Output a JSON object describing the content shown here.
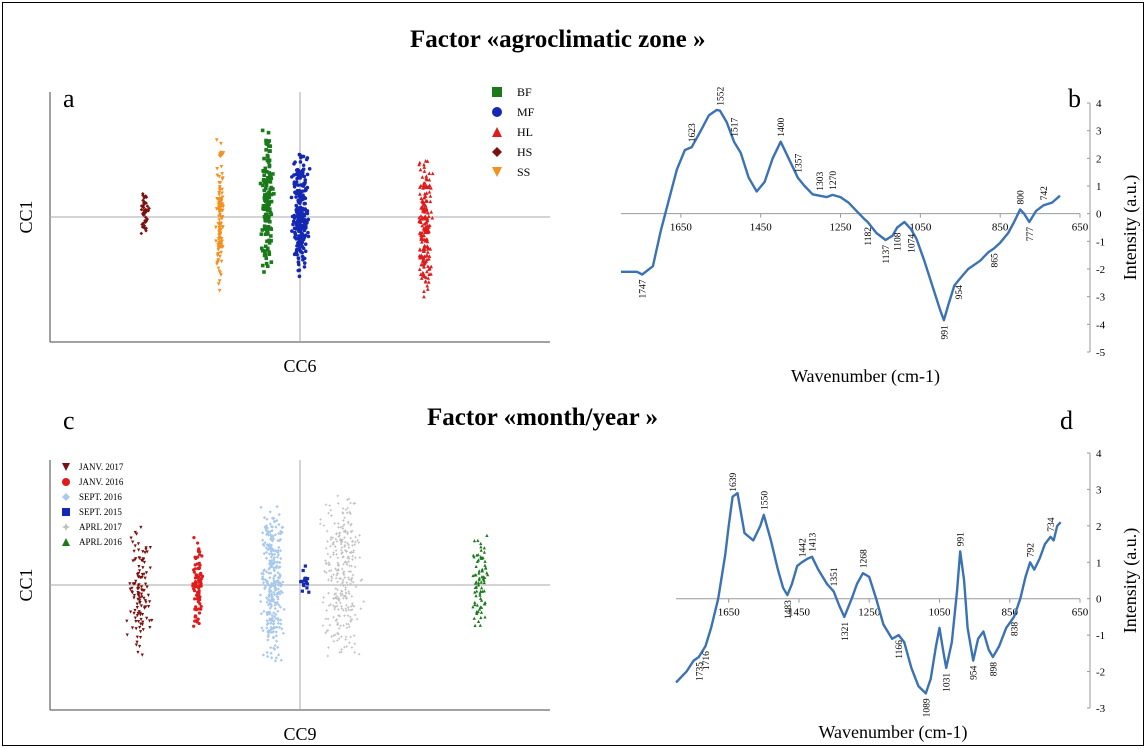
{
  "titles": {
    "top": "Factor «agroclimatic zone »",
    "bottom": "Factor «month/year »"
  },
  "chart_data": [
    {
      "panel": "a",
      "type": "scatter",
      "xlabel": "CC6",
      "ylabel": "CC1",
      "xlim": [
        -1,
        1
      ],
      "ylim": [
        -1,
        1
      ],
      "grid": false,
      "legend_position": "top-right",
      "series": [
        {
          "name": "BF",
          "marker": "square",
          "color": "#1a7a1a",
          "x_center": -0.13,
          "x_spread": 0.03,
          "y_range": [
            -0.5,
            0.72
          ],
          "count": 140
        },
        {
          "name": "MF",
          "marker": "circle",
          "color": "#1428b4",
          "x_center": 0.0,
          "x_spread": 0.045,
          "y_range": [
            -0.5,
            0.56
          ],
          "count": 260
        },
        {
          "name": "HL",
          "marker": "triangle-up",
          "color": "#e01b1b",
          "x_center": 0.5,
          "x_spread": 0.035,
          "y_range": [
            -0.68,
            0.5
          ],
          "count": 200
        },
        {
          "name": "HS",
          "marker": "diamond",
          "color": "#7a1010",
          "x_center": -0.62,
          "x_spread": 0.018,
          "y_range": [
            -0.16,
            0.22
          ],
          "count": 45
        },
        {
          "name": "SS",
          "marker": "triangle-down",
          "color": "#f5901e",
          "x_center": -0.32,
          "x_spread": 0.02,
          "y_range": [
            -0.66,
            0.64
          ],
          "count": 130
        }
      ]
    },
    {
      "panel": "b",
      "type": "line",
      "xlabel": "Wavenumber (cm-1)",
      "ylabel": "Intensity (a.u.)",
      "xlim": [
        1800,
        650
      ],
      "ylim": [
        -5,
        4
      ],
      "x_ticks": [
        1650,
        1450,
        1250,
        1050,
        850,
        650
      ],
      "y_ticks": [
        4,
        3,
        2,
        1,
        0,
        -1,
        -2,
        -3,
        -4,
        -5
      ],
      "line_color": "#3a72b5",
      "x": [
        1800,
        1760,
        1747,
        1720,
        1700,
        1680,
        1660,
        1640,
        1623,
        1600,
        1580,
        1560,
        1552,
        1535,
        1517,
        1500,
        1480,
        1460,
        1440,
        1420,
        1400,
        1380,
        1357,
        1340,
        1320,
        1303,
        1285,
        1270,
        1250,
        1230,
        1210,
        1190,
        1182,
        1160,
        1137,
        1120,
        1108,
        1090,
        1074,
        1060,
        1040,
        1020,
        1000,
        991,
        980,
        965,
        954,
        930,
        900,
        880,
        865,
        850,
        830,
        815,
        800,
        790,
        777,
        760,
        742,
        720,
        700
      ],
      "y": [
        -2.1,
        -2.1,
        -2.2,
        -1.9,
        -0.6,
        0.5,
        1.6,
        2.3,
        2.4,
        3.0,
        3.55,
        3.75,
        3.72,
        3.3,
        2.6,
        2.2,
        1.3,
        0.8,
        1.15,
        2.0,
        2.6,
        2.0,
        1.3,
        1.0,
        0.7,
        0.65,
        0.6,
        0.68,
        0.6,
        0.4,
        0.1,
        -0.2,
        -0.3,
        -0.7,
        -0.95,
        -0.8,
        -0.5,
        -0.3,
        -0.55,
        -0.9,
        -1.7,
        -2.6,
        -3.5,
        -3.85,
        -3.3,
        -2.6,
        -2.4,
        -2.0,
        -1.7,
        -1.4,
        -1.25,
        -1.05,
        -0.7,
        -0.3,
        0.15,
        0.0,
        -0.3,
        0.1,
        0.3,
        0.4,
        0.65
      ],
      "peak_labels": [
        {
          "x": 1747,
          "y": -2.2,
          "text": "1747",
          "pos": "below"
        },
        {
          "x": 1623,
          "y": 2.4,
          "text": "1623",
          "pos": "above"
        },
        {
          "x": 1552,
          "y": 3.72,
          "text": "1552",
          "pos": "above"
        },
        {
          "x": 1517,
          "y": 2.6,
          "text": "1517",
          "pos": "above"
        },
        {
          "x": 1400,
          "y": 2.6,
          "text": "1400",
          "pos": "above"
        },
        {
          "x": 1357,
          "y": 1.3,
          "text": "1357",
          "pos": "above"
        },
        {
          "x": 1303,
          "y": 0.65,
          "text": "1303",
          "pos": "above"
        },
        {
          "x": 1270,
          "y": 0.68,
          "text": "1270",
          "pos": "above"
        },
        {
          "x": 1182,
          "y": -0.3,
          "text": "1182",
          "pos": "below"
        },
        {
          "x": 1137,
          "y": -0.95,
          "text": "1137",
          "pos": "below"
        },
        {
          "x": 1108,
          "y": -0.5,
          "text": "1108",
          "pos": "below"
        },
        {
          "x": 1074,
          "y": -0.55,
          "text": "1074",
          "pos": "below"
        },
        {
          "x": 991,
          "y": -3.85,
          "text": "991",
          "pos": "below"
        },
        {
          "x": 954,
          "y": -2.4,
          "text": "954",
          "pos": "below"
        },
        {
          "x": 865,
          "y": -1.25,
          "text": "865",
          "pos": "below"
        },
        {
          "x": 800,
          "y": 0.15,
          "text": "800",
          "pos": "above"
        },
        {
          "x": 777,
          "y": -0.3,
          "text": "777",
          "pos": "below"
        },
        {
          "x": 742,
          "y": 0.3,
          "text": "742",
          "pos": "above"
        }
      ]
    },
    {
      "panel": "c",
      "type": "scatter",
      "xlabel": "CC9",
      "ylabel": "CC1",
      "xlim": [
        -1,
        1
      ],
      "ylim": [
        -1,
        1
      ],
      "grid": false,
      "legend_position": "top-left",
      "series": [
        {
          "name": "JANV. 2017",
          "marker": "triangle-down",
          "color": "#7a1010",
          "x_center": -0.64,
          "x_spread": 0.06,
          "y_range": [
            -0.6,
            0.5
          ],
          "count": 120
        },
        {
          "name": "JANV. 2016",
          "marker": "circle",
          "color": "#e01b1b",
          "x_center": -0.41,
          "x_spread": 0.025,
          "y_range": [
            -0.4,
            0.4
          ],
          "count": 90
        },
        {
          "name": "SEPT. 2016",
          "marker": "diamond",
          "color": "#a8c8ec",
          "x_center": -0.11,
          "x_spread": 0.06,
          "y_range": [
            -0.7,
            0.7
          ],
          "count": 300
        },
        {
          "name": "SEPT. 2015",
          "marker": "square",
          "color": "#1428b4",
          "x_center": 0.02,
          "x_spread": 0.03,
          "y_range": [
            -0.12,
            0.2
          ],
          "count": 16
        },
        {
          "name": "APRL 2017",
          "marker": "star",
          "color": "#c0c0c0",
          "x_center": 0.17,
          "x_spread": 0.1,
          "y_range": [
            -0.62,
            0.78
          ],
          "count": 300
        },
        {
          "name": "APRL 2016",
          "marker": "triangle-up",
          "color": "#1a7a1a",
          "x_center": 0.72,
          "x_spread": 0.045,
          "y_range": [
            -0.38,
            0.48
          ],
          "count": 80
        }
      ]
    },
    {
      "panel": "d",
      "type": "line",
      "xlabel": "Wavenumber (cm-1)",
      "ylabel": "Intensity (a.u.)",
      "xlim": [
        1800,
        650
      ],
      "ylim": [
        -3,
        4
      ],
      "x_ticks": [
        1650,
        1450,
        1250,
        1050,
        850,
        650
      ],
      "y_ticks": [
        4,
        3,
        2,
        1,
        0,
        -1,
        -2,
        -3
      ],
      "line_color": "#3a72b5",
      "x": [
        1800,
        1770,
        1750,
        1735,
        1716,
        1700,
        1680,
        1660,
        1650,
        1639,
        1625,
        1605,
        1580,
        1560,
        1550,
        1530,
        1510,
        1495,
        1483,
        1470,
        1455,
        1442,
        1425,
        1413,
        1395,
        1370,
        1351,
        1335,
        1321,
        1300,
        1285,
        1268,
        1250,
        1230,
        1210,
        1185,
        1166,
        1150,
        1130,
        1110,
        1089,
        1075,
        1060,
        1050,
        1040,
        1031,
        1015,
        1000,
        991,
        980,
        970,
        954,
        940,
        925,
        910,
        898,
        880,
        860,
        838,
        820,
        805,
        792,
        780,
        765,
        750,
        734,
        725,
        715,
        705
      ],
      "y": [
        -2.3,
        -2.0,
        -1.7,
        -1.6,
        -1.3,
        -0.8,
        0.0,
        1.2,
        2.0,
        2.8,
        2.9,
        1.8,
        1.6,
        2.0,
        2.3,
        1.6,
        0.8,
        0.3,
        0.1,
        0.4,
        0.9,
        1.0,
        1.1,
        1.15,
        0.8,
        0.4,
        0.2,
        -0.2,
        -0.5,
        0.0,
        0.4,
        0.7,
        0.6,
        0.0,
        -0.7,
        -1.1,
        -1.0,
        -1.2,
        -1.9,
        -2.4,
        -2.6,
        -2.2,
        -1.3,
        -0.8,
        -1.4,
        -1.9,
        -1.2,
        0.2,
        1.3,
        0.5,
        -0.8,
        -1.7,
        -1.1,
        -0.9,
        -1.4,
        -1.6,
        -1.3,
        -0.8,
        -0.5,
        0.0,
        0.6,
        1.0,
        0.8,
        1.1,
        1.5,
        1.7,
        1.6,
        2.0,
        2.1
      ],
      "peak_labels": [
        {
          "x": 1735,
          "y": -1.6,
          "text": "1735",
          "pos": "below"
        },
        {
          "x": 1716,
          "y": -1.3,
          "text": "1716",
          "pos": "below"
        },
        {
          "x": 1639,
          "y": 2.8,
          "text": "1639",
          "pos": "above"
        },
        {
          "x": 1550,
          "y": 2.3,
          "text": "1550",
          "pos": "above"
        },
        {
          "x": 1483,
          "y": 0.1,
          "text": "1483",
          "pos": "below"
        },
        {
          "x": 1442,
          "y": 1.0,
          "text": "1442",
          "pos": "above"
        },
        {
          "x": 1413,
          "y": 1.15,
          "text": "1413",
          "pos": "above"
        },
        {
          "x": 1351,
          "y": 0.2,
          "text": "1351",
          "pos": "above"
        },
        {
          "x": 1321,
          "y": -0.5,
          "text": "1321",
          "pos": "below"
        },
        {
          "x": 1268,
          "y": 0.7,
          "text": "1268",
          "pos": "above"
        },
        {
          "x": 1166,
          "y": -1.0,
          "text": "1166",
          "pos": "below"
        },
        {
          "x": 1089,
          "y": -2.6,
          "text": "1089",
          "pos": "below"
        },
        {
          "x": 1031,
          "y": -1.9,
          "text": "1031",
          "pos": "below"
        },
        {
          "x": 991,
          "y": 1.3,
          "text": "991",
          "pos": "above"
        },
        {
          "x": 954,
          "y": -1.7,
          "text": "954",
          "pos": "below"
        },
        {
          "x": 898,
          "y": -1.6,
          "text": "898",
          "pos": "below"
        },
        {
          "x": 838,
          "y": -0.5,
          "text": "838",
          "pos": "below"
        },
        {
          "x": 792,
          "y": 1.0,
          "text": "792",
          "pos": "above"
        },
        {
          "x": 734,
          "y": 1.7,
          "text": "734",
          "pos": "above"
        }
      ]
    }
  ]
}
